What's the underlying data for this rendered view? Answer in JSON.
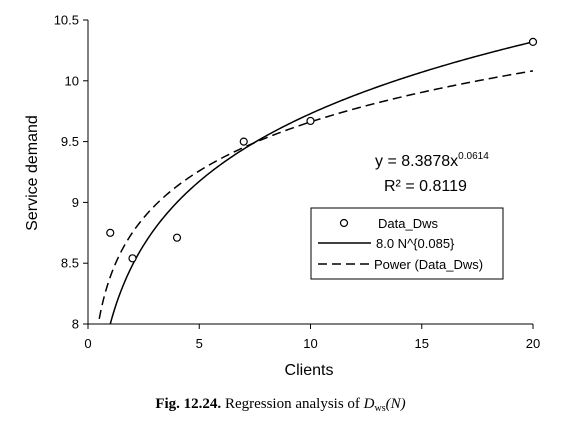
{
  "chart_data": {
    "type": "scatter",
    "xlabel": "Clients",
    "ylabel": "Service demand",
    "xlim": [
      0,
      20
    ],
    "ylim": [
      8,
      10.5
    ],
    "x_ticks": [
      0,
      5,
      10,
      15,
      20
    ],
    "y_ticks": [
      8,
      8.5,
      9,
      9.5,
      10,
      10.5
    ],
    "x_tick_labels": [
      "0",
      "5",
      "10",
      "15",
      "20"
    ],
    "y_tick_labels": [
      "8",
      "8.5",
      "9",
      "9.5",
      "10",
      "10.5"
    ],
    "grid": false,
    "legend_placement": "right",
    "series": [
      {
        "name": "Data_Dws",
        "kind": "markers",
        "points": [
          {
            "x": 1,
            "y": 8.75
          },
          {
            "x": 2,
            "y": 8.54
          },
          {
            "x": 4,
            "y": 8.71
          },
          {
            "x": 7,
            "y": 9.5
          },
          {
            "x": 10,
            "y": 9.67
          },
          {
            "x": 20,
            "y": 10.32
          }
        ]
      },
      {
        "name": "8.0 N^{0.085}",
        "kind": "solid-line",
        "coefficient": 8.0,
        "exponent": 0.085,
        "x_start": 1,
        "x_end": 20
      },
      {
        "name": "Power (Data_Dws)",
        "kind": "dashed-line",
        "coefficient": 8.3878,
        "exponent": 0.0614,
        "x_start": 0.4,
        "x_end": 20
      }
    ],
    "annotations": {
      "equation_main": "y = 8.3878x",
      "equation_exponent": "0.0614",
      "r_squared": "R² = 0.8119"
    }
  },
  "caption": {
    "figure_label": "Fig. 12.24.",
    "text": "Regression analysis of",
    "math_symbol": "D",
    "math_subscript": "ws",
    "math_argument": "(N)"
  },
  "colors": {
    "axis": "#000000",
    "series": "#000000",
    "background": "#ffffff"
  }
}
